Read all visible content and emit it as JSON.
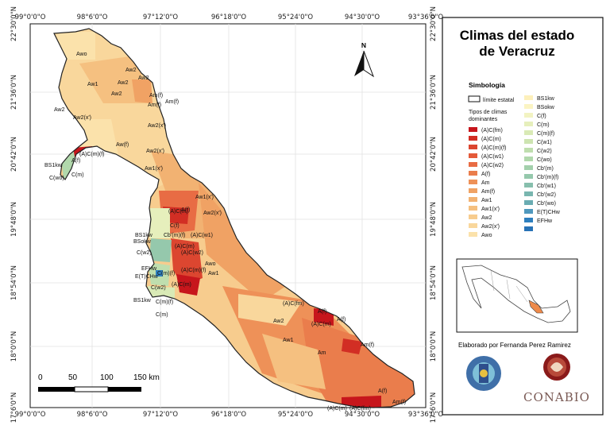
{
  "map": {
    "title_line1": "Climas del estado",
    "title_line2": "de Veracruz",
    "north": "N",
    "x_ticks": [
      "99°0'0\"O",
      "98°6'0\"O",
      "97°12'0\"O",
      "96°18'0\"O",
      "95°24'0\"O",
      "94°30'0\"O",
      "93°36'0\"O"
    ],
    "y_ticks": [
      "22°30'0\"N",
      "21°36'0\"N",
      "20°42'0\"N",
      "19°48'0\"N",
      "18°54'0\"N",
      "18°0'0\"N",
      "17°6'0\"N"
    ],
    "scale": {
      "labels": [
        "0",
        "50",
        "100",
        "150 km"
      ]
    },
    "region_labels": [
      "Awo",
      "Aw2",
      "Aw2",
      "Aw1",
      "Aw2",
      "Aw2",
      "Am(f)",
      "Am(f)",
      "Am(f)",
      "Aw2",
      "Aw2(x')",
      "Aw2(x')",
      "Aw(f)",
      "Aw2(x')",
      "Aw1(x')",
      "(A)C(m)(f)",
      "A(f)",
      "BS1kw",
      "C(wo)",
      "C(m)",
      "Aw1(x')",
      "A(f)",
      "(A)C(m)",
      "Aw2(x')",
      "C(f)",
      "Cb'(m)(f)",
      "(A)C(w1)",
      "BS1kw",
      "BSokw",
      "C(w2)",
      "(A)C(m)",
      "(A)C(w2)",
      "Awo",
      "Aw1",
      "EFHw",
      "E(T)CHw",
      "C(m)(f)",
      "(A)C(m)(f)",
      "(A)C(m)",
      "C(w2)",
      "BS1kw",
      "C(m)(f)",
      "C(m)",
      "(A)C(fm)",
      "A(f)",
      "(A)C(m)",
      "A(f)",
      "Aw2",
      "Aw1",
      "Am",
      "Am(f)",
      "A(f)",
      "(A)C(m)",
      "(A)C(fm)",
      "Am(f)"
    ]
  },
  "legend": {
    "heading": "Simbología",
    "boundary_label": "límite estatal",
    "types_heading_line1": "Tipos de climas",
    "types_heading_line2": "dominantes",
    "left_items": [
      {
        "label": "(A)C(fm)",
        "color": "#c7161c"
      },
      {
        "label": "(A)C(m)",
        "color": "#d22e24"
      },
      {
        "label": "(A)C(m)(f)",
        "color": "#dc4630"
      },
      {
        "label": "(A)C(w1)",
        "color": "#e45a3a"
      },
      {
        "label": "(A)C(w2)",
        "color": "#e86c44"
      },
      {
        "label": "A(f)",
        "color": "#ea7d4c"
      },
      {
        "label": "Am",
        "color": "#ee9158"
      },
      {
        "label": "Am(f)",
        "color": "#f0a264"
      },
      {
        "label": "Aw1",
        "color": "#f2b272"
      },
      {
        "label": "Aw1(x')",
        "color": "#f5c080"
      },
      {
        "label": "Aw2",
        "color": "#f7cc8e"
      },
      {
        "label": "Aw2(x')",
        "color": "#f9d79c"
      },
      {
        "label": "Awo",
        "color": "#fbe2ab"
      }
    ],
    "right_items": [
      {
        "label": "BS1kw",
        "color": "#fdf0bb"
      },
      {
        "label": "BSokw",
        "color": "#fbf4c3"
      },
      {
        "label": "C(f)",
        "color": "#f2f3c2"
      },
      {
        "label": "C(m)",
        "color": "#e6efbc"
      },
      {
        "label": "C(m)(f)",
        "color": "#d9eab6"
      },
      {
        "label": "C(w1)",
        "color": "#cde4b1"
      },
      {
        "label": "C(w2)",
        "color": "#bfdeae"
      },
      {
        "label": "C(wo)",
        "color": "#b1d8ac"
      },
      {
        "label": "Cb'(m)",
        "color": "#a3d0ac"
      },
      {
        "label": "Cb'(m)(f)",
        "color": "#95c8ac"
      },
      {
        "label": "Cb'(w1)",
        "color": "#87bfad"
      },
      {
        "label": "Cb'(w2)",
        "color": "#79b6af"
      },
      {
        "label": "Cb'(wo)",
        "color": "#6aacb2"
      },
      {
        "label": "E(T)CHw",
        "color": "#4f98bd"
      },
      {
        "label": "EFHw",
        "color": "#2e7fbe"
      },
      {
        "label": "",
        "color": "#2872b6"
      }
    ],
    "credit": "Elaborado por Fernanda Perez Ramirez",
    "conabio": "CONABIO"
  }
}
